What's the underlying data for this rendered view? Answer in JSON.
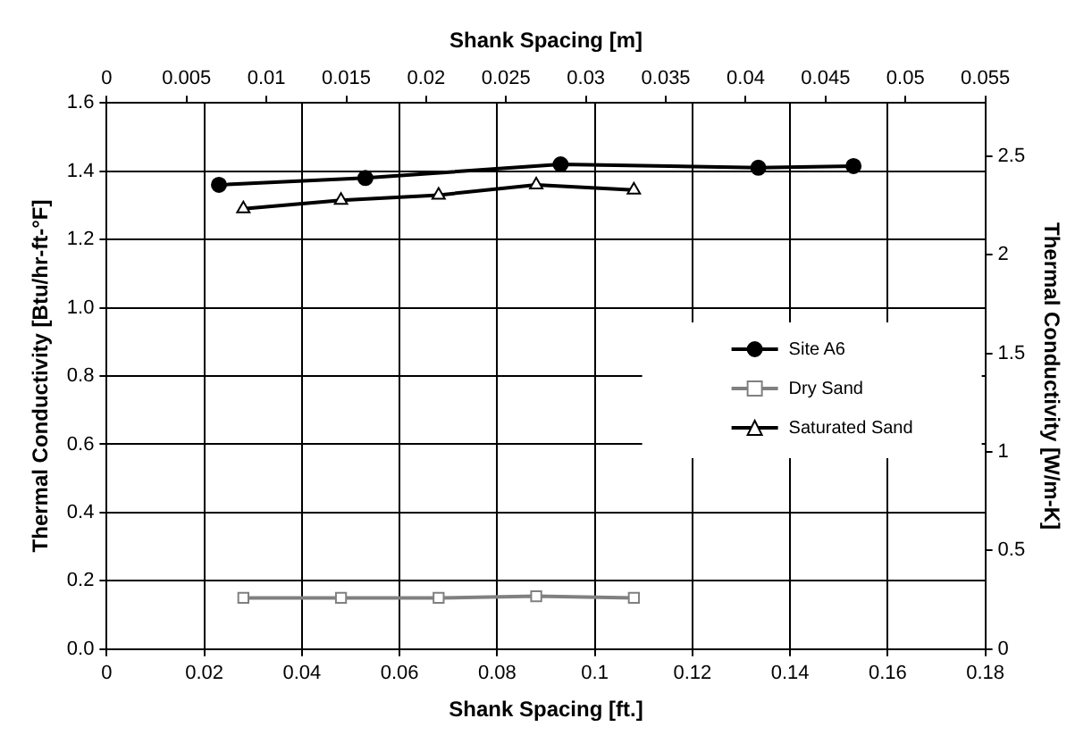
{
  "chart_data": {
    "type": "line",
    "xlabel": "Shank Spacing [ft.]",
    "ylabel": "Thermal Conductivity [Btu/hr-ft-°F]",
    "y2label": "Thermal Conductivity [W/m-K]",
    "x2label": "Shank Spacing [m]",
    "xlim": [
      0,
      0.18
    ],
    "xticks": [
      0,
      0.02,
      0.04,
      0.06,
      0.08,
      0.1,
      0.12,
      0.14,
      0.16,
      0.18
    ],
    "ylim": [
      0,
      1.6
    ],
    "yticks": [
      {
        "value": 0,
        "label": "0.0"
      },
      {
        "value": 0.2,
        "label": "0.2"
      },
      {
        "value": 0.4,
        "label": "0.4"
      },
      {
        "value": 0.6,
        "label": "0.6"
      },
      {
        "value": 0.8,
        "label": "0.8"
      },
      {
        "value": 1,
        "label": "1.0"
      },
      {
        "value": 1.2,
        "label": "1.2"
      },
      {
        "value": 1.4,
        "label": "1.4"
      },
      {
        "value": 1.6,
        "label": "1.6"
      }
    ],
    "x2lim": [
      0,
      0.055
    ],
    "x2ticks": [
      0,
      0.005,
      0.01,
      0.015,
      0.02,
      0.025,
      0.03,
      0.035,
      0.04,
      0.045,
      0.05,
      0.055
    ],
    "y2lim": [
      0,
      2.77
    ],
    "y2ticks": [
      0,
      0.5,
      1,
      1.5,
      2,
      2.5
    ],
    "grid": true,
    "legend": "right",
    "line_style": "solid",
    "series": [
      {
        "name": "Site A6",
        "color": "#000000",
        "marker": "circle",
        "x": [
          0.023,
          0.053,
          0.093,
          0.1335,
          0.153
        ],
        "values": [
          1.36,
          1.38,
          1.42,
          1.41,
          1.415
        ]
      },
      {
        "name": "Dry Sand",
        "color": "#808080",
        "marker": "square",
        "x": [
          0.028,
          0.048,
          0.068,
          0.088,
          0.108
        ],
        "values": [
          0.15,
          0.15,
          0.15,
          0.155,
          0.15
        ]
      },
      {
        "name": "Saturated Sand",
        "color": "#000000",
        "marker": "triangle",
        "x": [
          0.028,
          0.048,
          0.068,
          0.088,
          0.108
        ],
        "values": [
          1.29,
          1.315,
          1.33,
          1.36,
          1.345
        ]
      }
    ]
  }
}
